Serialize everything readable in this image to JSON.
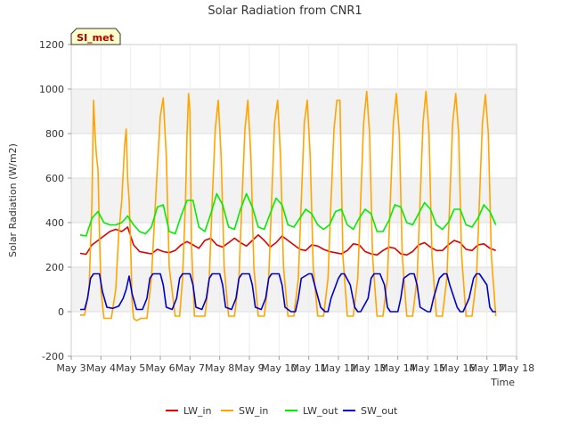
{
  "chart_data": {
    "type": "line",
    "title": "Solar Radiation from CNR1",
    "xlabel": "Time",
    "ylabel": "Solar Radiation (W/m2)",
    "site_badge": "SI_met",
    "xlim": [
      3,
      18
    ],
    "ylim": [
      -200,
      1200
    ],
    "x_ticks": [
      {
        "v": 3,
        "label": "May 3"
      },
      {
        "v": 4,
        "label": "May 4"
      },
      {
        "v": 5,
        "label": "May 5"
      },
      {
        "v": 6,
        "label": "May 6"
      },
      {
        "v": 7,
        "label": "May 7"
      },
      {
        "v": 8,
        "label": "May 8"
      },
      {
        "v": 9,
        "label": "May 9"
      },
      {
        "v": 10,
        "label": "May 10"
      },
      {
        "v": 11,
        "label": "May 11"
      },
      {
        "v": 12,
        "label": "May 12"
      },
      {
        "v": 13,
        "label": "May 13"
      },
      {
        "v": 14,
        "label": "May 14"
      },
      {
        "v": 15,
        "label": "May 15"
      },
      {
        "v": 16,
        "label": "May 16"
      },
      {
        "v": 17,
        "label": "May 17"
      },
      {
        "v": 18,
        "label": "May 18"
      }
    ],
    "y_ticks": [
      -200,
      0,
      200,
      400,
      600,
      800,
      1000,
      1200
    ],
    "grid": true,
    "legend_position": "bottom",
    "series": [
      {
        "name": "LW_in",
        "color": "#dd0000",
        "x": [
          3.3,
          3.5,
          3.7,
          3.9,
          4.1,
          4.3,
          4.5,
          4.7,
          4.9,
          5.1,
          5.3,
          5.5,
          5.7,
          5.9,
          6.1,
          6.3,
          6.5,
          6.7,
          6.9,
          7.1,
          7.3,
          7.5,
          7.7,
          7.9,
          8.1,
          8.3,
          8.5,
          8.7,
          8.9,
          9.1,
          9.3,
          9.5,
          9.7,
          9.9,
          10.1,
          10.3,
          10.5,
          10.7,
          10.9,
          11.1,
          11.3,
          11.5,
          11.7,
          11.9,
          12.1,
          12.3,
          12.5,
          12.7,
          12.9,
          13.1,
          13.3,
          13.5,
          13.7,
          13.9,
          14.1,
          14.3,
          14.5,
          14.7,
          14.9,
          15.1,
          15.3,
          15.5,
          15.7,
          15.9,
          16.1,
          16.3,
          16.5,
          16.7,
          16.9,
          17.1,
          17.3
        ],
        "y": [
          262,
          258,
          300,
          320,
          340,
          360,
          370,
          360,
          380,
          300,
          270,
          265,
          260,
          280,
          270,
          265,
          275,
          300,
          315,
          300,
          285,
          320,
          330,
          300,
          290,
          310,
          330,
          310,
          295,
          320,
          345,
          320,
          290,
          310,
          340,
          320,
          300,
          280,
          275,
          300,
          295,
          280,
          270,
          265,
          260,
          275,
          305,
          300,
          270,
          260,
          255,
          275,
          290,
          285,
          260,
          255,
          270,
          300,
          310,
          290,
          275,
          275,
          300,
          320,
          310,
          280,
          275,
          300,
          305,
          285,
          275
        ]
      },
      {
        "name": "SW_in",
        "color": "#ffa500",
        "x": [
          3.3,
          3.45,
          3.6,
          3.7,
          3.75,
          3.8,
          3.85,
          3.9,
          3.95,
          4.0,
          4.1,
          4.2,
          4.35,
          4.5,
          4.6,
          4.7,
          4.8,
          4.85,
          4.9,
          4.95,
          5.0,
          5.05,
          5.1,
          5.2,
          5.35,
          5.55,
          5.7,
          5.8,
          5.9,
          6.0,
          6.1,
          6.2,
          6.3,
          6.5,
          6.65,
          6.75,
          6.85,
          6.9,
          6.95,
          7.0,
          7.05,
          7.15,
          7.3,
          7.5,
          7.65,
          7.75,
          7.85,
          7.95,
          8.05,
          8.15,
          8.3,
          8.5,
          8.65,
          8.75,
          8.85,
          8.95,
          9.05,
          9.15,
          9.3,
          9.5,
          9.65,
          9.75,
          9.85,
          9.95,
          10.05,
          10.15,
          10.3,
          10.5,
          10.65,
          10.75,
          10.85,
          10.95,
          11.05,
          11.15,
          11.3,
          11.5,
          11.65,
          11.75,
          11.85,
          11.95,
          12.05,
          12.15,
          12.3,
          12.5,
          12.65,
          12.75,
          12.85,
          12.95,
          13.05,
          13.15,
          13.3,
          13.5,
          13.65,
          13.75,
          13.85,
          13.95,
          14.05,
          14.15,
          14.3,
          14.5,
          14.65,
          14.75,
          14.85,
          14.95,
          15.05,
          15.15,
          15.3,
          15.5,
          15.65,
          15.75,
          15.85,
          15.95,
          16.05,
          16.15,
          16.3,
          16.5,
          16.65,
          16.75,
          16.85,
          16.95,
          17.05,
          17.15,
          17.3
        ],
        "y": [
          -15,
          -15,
          100,
          500,
          950,
          800,
          700,
          640,
          350,
          100,
          -30,
          -30,
          -30,
          100,
          350,
          500,
          750,
          820,
          600,
          500,
          300,
          50,
          -30,
          -40,
          -30,
          -30,
          150,
          400,
          650,
          880,
          960,
          700,
          200,
          -20,
          -20,
          150,
          500,
          800,
          980,
          900,
          300,
          -20,
          -20,
          -20,
          150,
          500,
          820,
          950,
          700,
          200,
          -20,
          -20,
          150,
          500,
          820,
          950,
          700,
          200,
          -20,
          -20,
          150,
          500,
          850,
          950,
          700,
          200,
          -20,
          -20,
          150,
          500,
          850,
          950,
          700,
          200,
          -20,
          -20,
          150,
          500,
          820,
          950,
          950,
          250,
          -20,
          -20,
          150,
          500,
          850,
          990,
          800,
          250,
          -20,
          -20,
          150,
          500,
          850,
          980,
          800,
          250,
          -20,
          -20,
          150,
          500,
          850,
          990,
          800,
          250,
          -20,
          -20,
          150,
          500,
          850,
          980,
          800,
          250,
          -20,
          -20,
          150,
          500,
          850,
          975,
          800,
          250,
          -20
        ]
      },
      {
        "name": "LW_out",
        "color": "#00ee00",
        "x": [
          3.3,
          3.5,
          3.7,
          3.9,
          4.1,
          4.3,
          4.5,
          4.7,
          4.9,
          5.1,
          5.3,
          5.5,
          5.7,
          5.9,
          6.1,
          6.3,
          6.5,
          6.7,
          6.9,
          7.1,
          7.3,
          7.5,
          7.7,
          7.9,
          8.1,
          8.3,
          8.5,
          8.7,
          8.9,
          9.1,
          9.3,
          9.5,
          9.7,
          9.9,
          10.1,
          10.3,
          10.5,
          10.7,
          10.9,
          11.1,
          11.3,
          11.5,
          11.7,
          11.9,
          12.1,
          12.3,
          12.5,
          12.7,
          12.9,
          13.1,
          13.3,
          13.5,
          13.7,
          13.9,
          14.1,
          14.3,
          14.5,
          14.7,
          14.9,
          15.1,
          15.3,
          15.5,
          15.7,
          15.9,
          16.1,
          16.3,
          16.5,
          16.7,
          16.9,
          17.1,
          17.3
        ],
        "y": [
          345,
          340,
          420,
          450,
          400,
          390,
          390,
          400,
          430,
          390,
          360,
          350,
          380,
          470,
          480,
          360,
          350,
          430,
          500,
          500,
          380,
          360,
          440,
          530,
          480,
          380,
          370,
          460,
          530,
          470,
          380,
          370,
          440,
          510,
          480,
          390,
          380,
          420,
          460,
          440,
          390,
          370,
          390,
          450,
          460,
          390,
          370,
          420,
          460,
          440,
          360,
          360,
          410,
          480,
          470,
          400,
          390,
          440,
          490,
          460,
          390,
          370,
          400,
          460,
          460,
          390,
          380,
          420,
          480,
          450,
          390
        ]
      },
      {
        "name": "SW_out",
        "color": "#0000cc",
        "x": [
          3.3,
          3.45,
          3.55,
          3.65,
          3.75,
          3.95,
          4.05,
          4.2,
          4.4,
          4.6,
          4.75,
          4.85,
          4.95,
          5.05,
          5.2,
          5.4,
          5.55,
          5.65,
          5.75,
          6.0,
          6.1,
          6.2,
          6.4,
          6.55,
          6.65,
          6.75,
          7.0,
          7.1,
          7.2,
          7.4,
          7.55,
          7.65,
          7.75,
          8.0,
          8.1,
          8.2,
          8.4,
          8.55,
          8.65,
          8.75,
          9.0,
          9.1,
          9.2,
          9.4,
          9.55,
          9.65,
          9.75,
          10.0,
          10.1,
          10.2,
          10.4,
          10.55,
          10.65,
          10.75,
          11.0,
          11.1,
          11.2,
          11.4,
          11.55,
          11.65,
          11.75,
          12.0,
          12.1,
          12.2,
          12.4,
          12.55,
          12.65,
          12.75,
          13.0,
          13.1,
          13.2,
          13.4,
          13.55,
          13.65,
          13.75,
          14.0,
          14.1,
          14.2,
          14.4,
          14.55,
          14.65,
          14.75,
          15.0,
          15.1,
          15.2,
          15.4,
          15.55,
          15.65,
          15.75,
          16.0,
          16.1,
          16.2,
          16.4,
          16.55,
          16.65,
          16.75,
          17.0,
          17.1,
          17.2,
          17.3
        ],
        "y": [
          10,
          10,
          60,
          150,
          170,
          170,
          90,
          20,
          15,
          25,
          60,
          100,
          160,
          80,
          10,
          10,
          60,
          150,
          170,
          170,
          120,
          20,
          10,
          60,
          150,
          170,
          170,
          120,
          20,
          10,
          60,
          150,
          170,
          170,
          120,
          20,
          10,
          60,
          150,
          170,
          170,
          120,
          20,
          10,
          60,
          150,
          170,
          170,
          120,
          20,
          0,
          0,
          60,
          150,
          170,
          170,
          120,
          20,
          0,
          0,
          60,
          150,
          170,
          170,
          120,
          20,
          0,
          0,
          60,
          150,
          170,
          170,
          120,
          20,
          0,
          0,
          60,
          150,
          170,
          170,
          120,
          20,
          0,
          0,
          60,
          150,
          170,
          170,
          120,
          20,
          0,
          0,
          60,
          150,
          170,
          170,
          120,
          20,
          0,
          0
        ]
      }
    ]
  }
}
